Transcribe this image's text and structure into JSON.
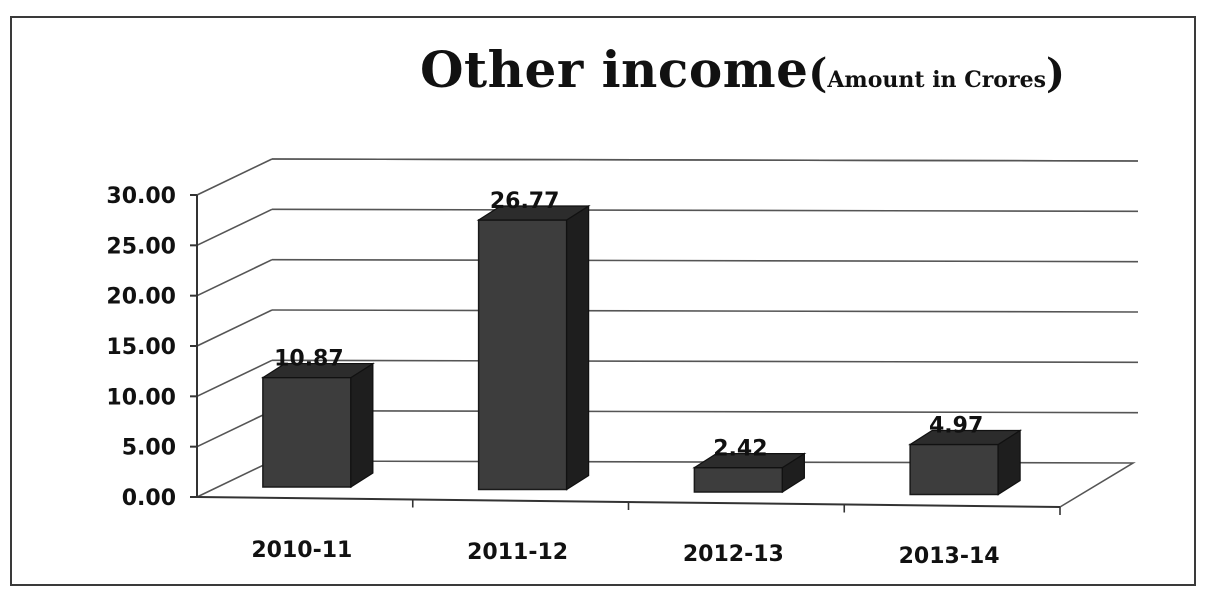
{
  "chart_data": {
    "type": "bar",
    "title": "Other income",
    "subtitle": "Amount in Crores",
    "categories": [
      "2010-11",
      "2011-12",
      "2012-13",
      "2013-14"
    ],
    "values": [
      10.87,
      26.77,
      2.42,
      4.97
    ],
    "value_labels": [
      "10.87",
      "26.77",
      "2.42",
      "4.97"
    ],
    "y_ticks": [
      "0.00",
      "5.00",
      "10.00",
      "15.00",
      "20.00",
      "25.00",
      "30.00"
    ],
    "ylim": [
      0,
      30
    ],
    "grid": true,
    "legend": "none",
    "bar_color": "#3d3d3d",
    "style": "3d-column"
  }
}
